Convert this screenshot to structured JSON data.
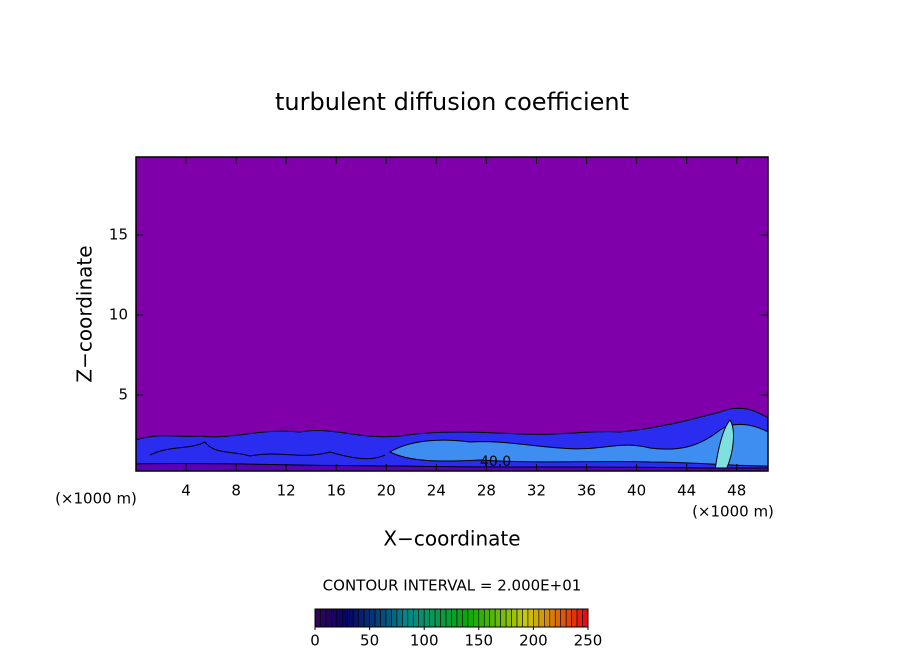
{
  "chart_data": {
    "type": "contour",
    "title": "turbulent diffusion coefficient",
    "x_label": "X−coordinate",
    "y_label": "Z−coordinate",
    "x_unit_label": "(×1000 m)",
    "y_unit_label": "(×1000 m)",
    "xlim": [
      0,
      50.5
    ],
    "ylim": [
      0.25,
      19.875
    ],
    "xticks": [
      4,
      8,
      12,
      16,
      20,
      24,
      28,
      32,
      36,
      40,
      44,
      48
    ],
    "yticks": [
      5,
      10,
      15
    ],
    "contour_label": "40.0",
    "contour_interval_text": "CONTOUR INTERVAL = 2.000E+01",
    "colorbar": {
      "lim": [
        0,
        250
      ],
      "ticks": [
        0,
        50,
        100,
        150,
        200,
        250
      ]
    }
  }
}
